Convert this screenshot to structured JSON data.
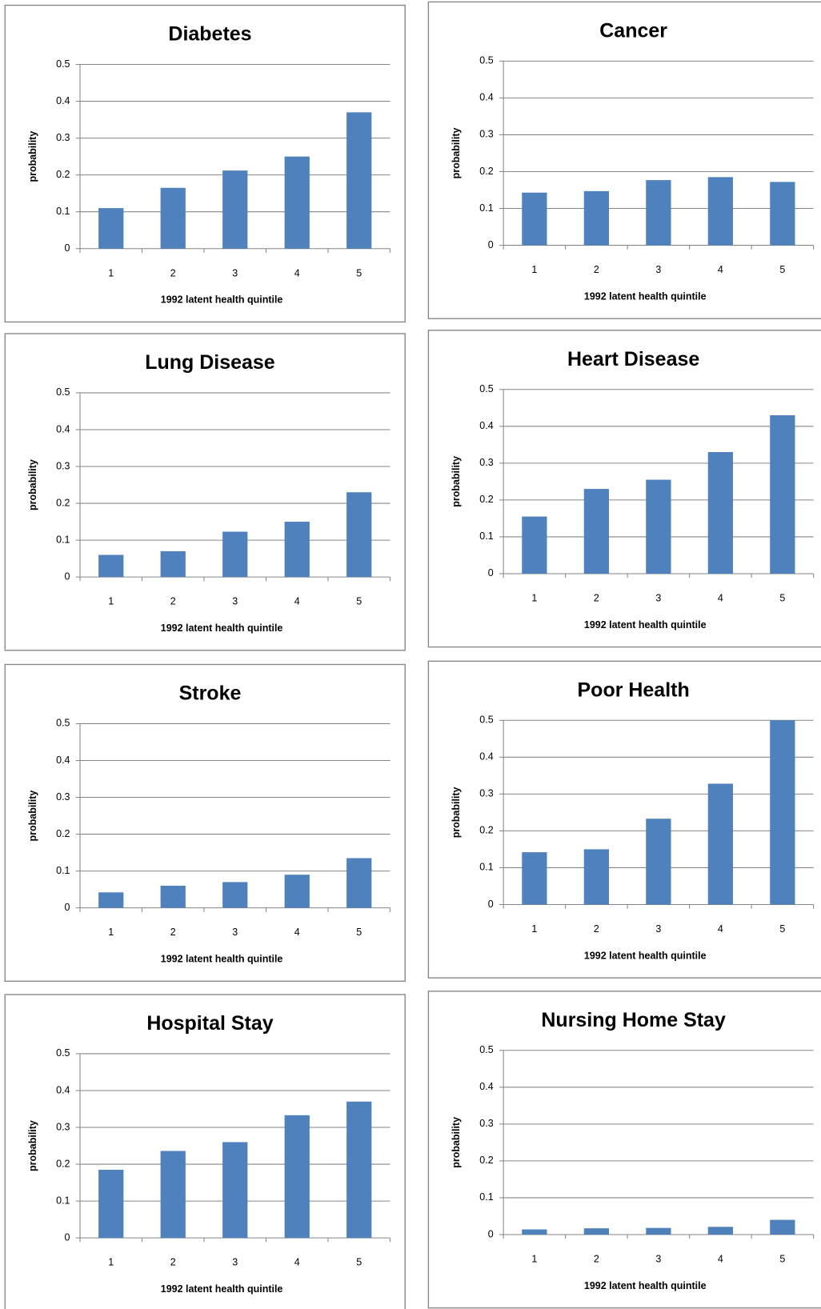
{
  "chart_data": [
    {
      "type": "bar",
      "title": "Diabetes",
      "categories": [
        "1",
        "2",
        "3",
        "4",
        "5"
      ],
      "values": [
        0.11,
        0.165,
        0.212,
        0.25,
        0.37
      ],
      "color": "#4f81bd",
      "xlabel": "1992 latent health quintile",
      "ylabel": "probability",
      "ylim": [
        0,
        0.5
      ],
      "yticks": [
        0,
        0.1,
        0.2,
        0.3,
        0.4,
        0.5
      ],
      "grid": true
    },
    {
      "type": "bar",
      "title": "Cancer",
      "categories": [
        "1",
        "2",
        "3",
        "4",
        "5"
      ],
      "values": [
        0.143,
        0.147,
        0.177,
        0.185,
        0.172
      ],
      "color": "#4f81bd",
      "xlabel": "1992 latent health quintile",
      "ylabel": "probability",
      "ylim": [
        0,
        0.5
      ],
      "yticks": [
        0,
        0.1,
        0.2,
        0.3,
        0.4,
        0.5
      ],
      "grid": true
    },
    {
      "type": "bar",
      "title": "Lung Disease",
      "categories": [
        "1",
        "2",
        "3",
        "4",
        "5"
      ],
      "values": [
        0.06,
        0.07,
        0.123,
        0.15,
        0.23
      ],
      "color": "#4f81bd",
      "xlabel": "1992 latent health quintile",
      "ylabel": "probability",
      "ylim": [
        0,
        0.5
      ],
      "yticks": [
        0,
        0.1,
        0.2,
        0.3,
        0.4,
        0.5
      ],
      "grid": true
    },
    {
      "type": "bar",
      "title": "Heart Disease",
      "categories": [
        "1",
        "2",
        "3",
        "4",
        "5"
      ],
      "values": [
        0.155,
        0.23,
        0.255,
        0.33,
        0.43
      ],
      "color": "#4f81bd",
      "xlabel": "1992 latent health quintile",
      "ylabel": "probability",
      "ylim": [
        0,
        0.5
      ],
      "yticks": [
        0,
        0.1,
        0.2,
        0.3,
        0.4,
        0.5
      ],
      "grid": true
    },
    {
      "type": "bar",
      "title": "Stroke",
      "categories": [
        "1",
        "2",
        "3",
        "4",
        "5"
      ],
      "values": [
        0.042,
        0.06,
        0.07,
        0.09,
        0.135
      ],
      "color": "#4f81bd",
      "xlabel": "1992 latent health quintile",
      "ylabel": "probability",
      "ylim": [
        0,
        0.5
      ],
      "yticks": [
        0,
        0.1,
        0.2,
        0.3,
        0.4,
        0.5
      ],
      "grid": true
    },
    {
      "type": "bar",
      "title": "Poor Health",
      "categories": [
        "1",
        "2",
        "3",
        "4",
        "5"
      ],
      "values": [
        0.142,
        0.15,
        0.233,
        0.328,
        0.5
      ],
      "color": "#4f81bd",
      "xlabel": "1992 latent health quintile",
      "ylabel": "probability",
      "ylim": [
        0,
        0.5
      ],
      "yticks": [
        0,
        0.1,
        0.2,
        0.3,
        0.4,
        0.5
      ],
      "grid": true
    },
    {
      "type": "bar",
      "title": "Hospital Stay",
      "categories": [
        "1",
        "2",
        "3",
        "4",
        "5"
      ],
      "values": [
        0.185,
        0.236,
        0.26,
        0.333,
        0.37
      ],
      "color": "#4f81bd",
      "xlabel": "1992 latent health quintile",
      "ylabel": "probability",
      "ylim": [
        0,
        0.5
      ],
      "yticks": [
        0,
        0.1,
        0.2,
        0.3,
        0.4,
        0.5
      ],
      "grid": true
    },
    {
      "type": "bar",
      "title": "Nursing Home Stay",
      "categories": [
        "1",
        "2",
        "3",
        "4",
        "5"
      ],
      "values": [
        0.014,
        0.017,
        0.018,
        0.021,
        0.04
      ],
      "color": "#4f81bd",
      "xlabel": "1992 latent health quintile",
      "ylabel": "probability",
      "ylim": [
        0,
        0.5
      ],
      "yticks": [
        0,
        0.1,
        0.2,
        0.3,
        0.4,
        0.5
      ],
      "grid": true
    }
  ]
}
